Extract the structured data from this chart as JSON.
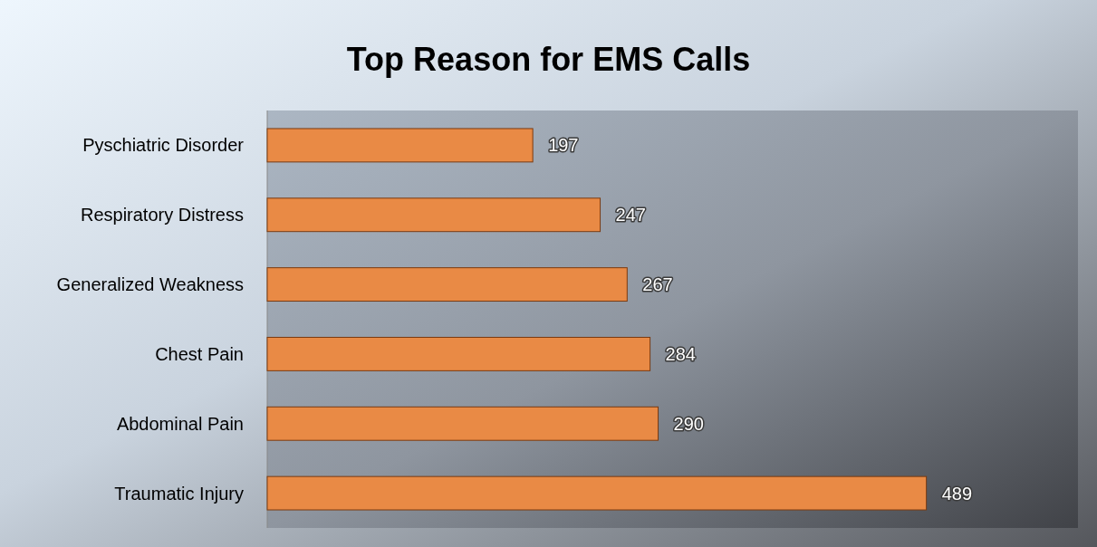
{
  "chart_data": {
    "type": "bar",
    "orientation": "horizontal",
    "title": "Top Reason for EMS Calls",
    "categories": [
      "Pyschiatric Disorder",
      "Respiratory Distress",
      "Generalized Weakness",
      "Chest Pain",
      "Abdominal Pain",
      "Traumatic Injury"
    ],
    "values": [
      197,
      247,
      267,
      284,
      290,
      489
    ],
    "color": "#e98a45",
    "data_labels": true
  }
}
